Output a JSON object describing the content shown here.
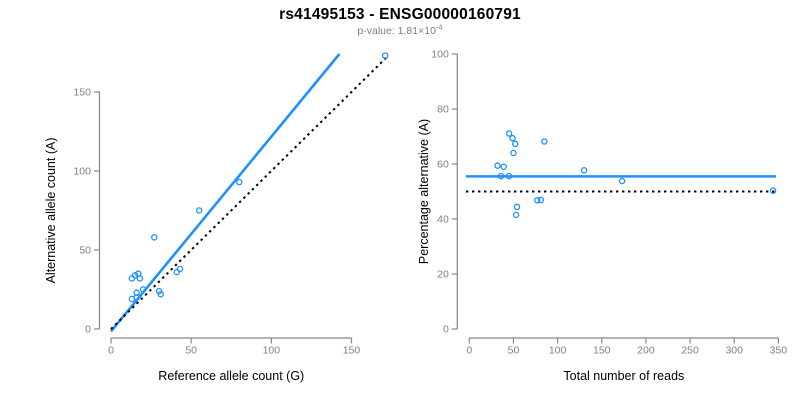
{
  "title": "rs41495153 - ENSG00000160791",
  "subtitle": {
    "text": "p-value: 1.81×10",
    "exponent": "-4"
  },
  "colors": {
    "accent": "#1e90ff",
    "dotted": "#000000",
    "axis": "#878787",
    "tick_label": "#808080",
    "label": "#000000",
    "background": "#ffffff"
  },
  "chart_data": [
    {
      "type": "scatter",
      "panel": "left",
      "xlabel": "Reference allele count (G)",
      "ylabel": "Alternative allele count (A)",
      "xticks": [
        0,
        50,
        100,
        150
      ],
      "yticks": [
        0,
        50,
        100,
        150
      ],
      "xlim": [
        0,
        174
      ],
      "ylim": [
        0,
        174
      ],
      "grid": false,
      "points": [
        [
          171,
          173
        ],
        [
          80,
          93
        ],
        [
          55,
          75
        ],
        [
          27,
          58
        ],
        [
          13,
          32
        ],
        [
          15,
          34
        ],
        [
          17,
          35
        ],
        [
          18,
          32
        ],
        [
          41,
          36
        ],
        [
          43,
          38
        ],
        [
          13,
          19
        ],
        [
          16,
          23
        ],
        [
          16,
          20
        ],
        [
          20,
          25
        ],
        [
          30,
          24
        ],
        [
          31,
          22
        ]
      ],
      "lines": [
        {
          "name": "fit-line",
          "slope": 1.232,
          "intercept": -1.5,
          "style": "solid",
          "color": "accent"
        },
        {
          "name": "identity-line",
          "slope": 1,
          "intercept": 0,
          "xmax": 172.3,
          "style": "dotted",
          "color": "dotted"
        }
      ]
    },
    {
      "type": "scatter",
      "panel": "right",
      "xlabel": "Total number of reads",
      "ylabel": "Percentage alternative (A)",
      "xticks": [
        0,
        50,
        100,
        150,
        200,
        250,
        300,
        350
      ],
      "yticks": [
        0,
        20,
        40,
        60,
        80,
        100
      ],
      "xlim": [
        0,
        350
      ],
      "ylim": [
        0,
        100
      ],
      "grid": false,
      "points": [
        [
          344,
          50.3
        ],
        [
          173,
          53.8
        ],
        [
          130,
          57.7
        ],
        [
          85,
          68.2
        ],
        [
          45,
          71.1
        ],
        [
          49,
          69.4
        ],
        [
          52,
          67.3
        ],
        [
          50,
          64.0
        ],
        [
          77,
          46.8
        ],
        [
          81,
          46.9
        ],
        [
          32,
          59.4
        ],
        [
          39,
          59.0
        ],
        [
          36,
          55.6
        ],
        [
          45,
          55.6
        ],
        [
          54,
          44.4
        ],
        [
          53,
          41.5
        ]
      ],
      "lines": [
        {
          "name": "mean-line",
          "hline": 55.5,
          "style": "solid",
          "color": "accent"
        },
        {
          "name": "null-line",
          "hline": 50,
          "style": "dotted",
          "color": "dotted"
        }
      ]
    }
  ]
}
